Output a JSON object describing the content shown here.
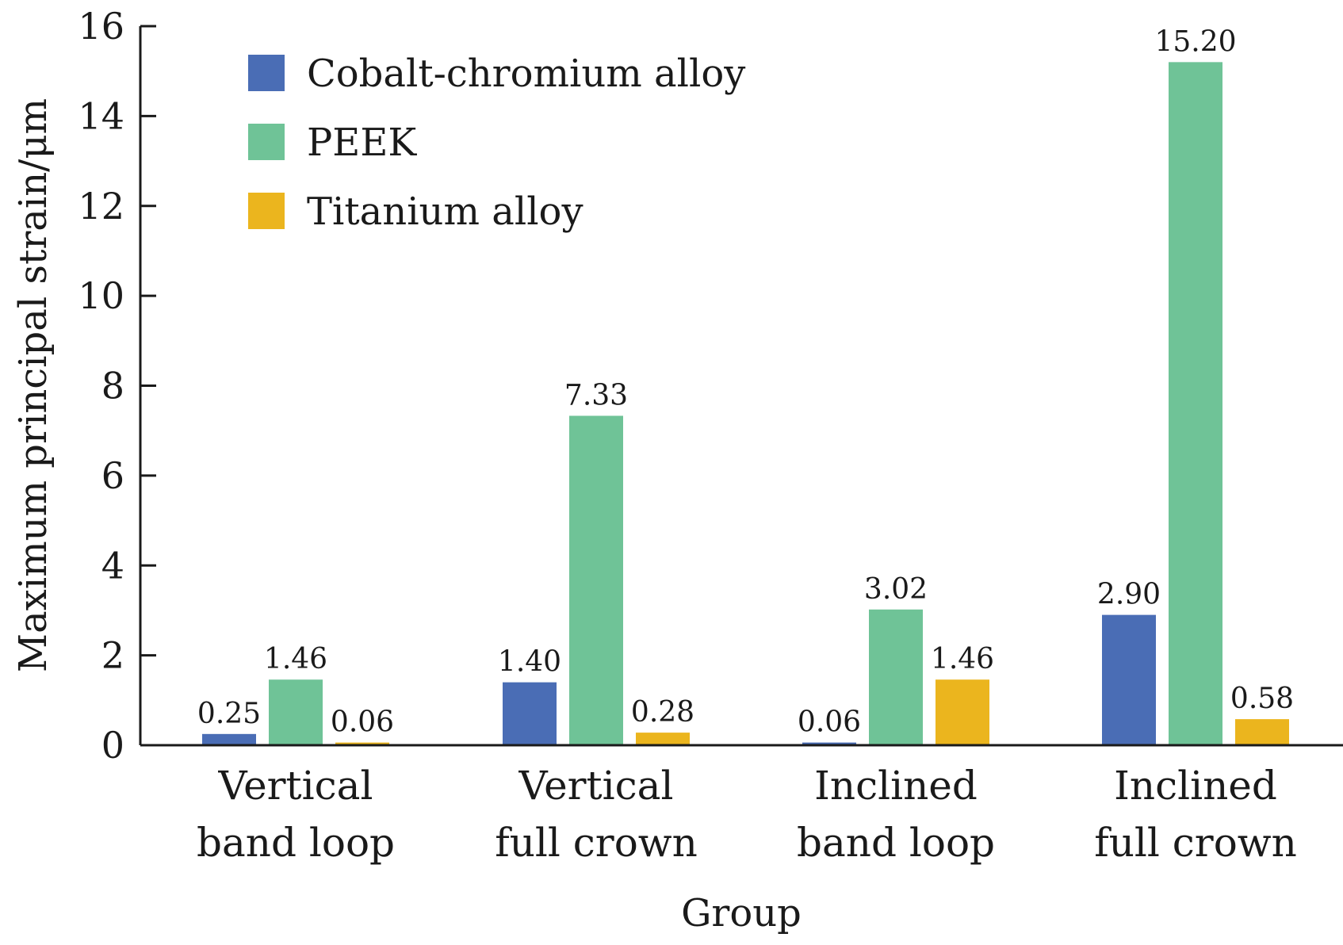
{
  "chart_data": {
    "type": "bar",
    "title": "",
    "xlabel": "Group",
    "ylabel": "Maximum principal strain/μm",
    "ylim": [
      0,
      16
    ],
    "yticks": [
      0,
      2,
      4,
      6,
      8,
      10,
      12,
      14,
      16
    ],
    "grid": false,
    "legend_position": "top-left",
    "categories": [
      [
        "Vertical",
        "band loop"
      ],
      [
        "Vertical",
        "full crown"
      ],
      [
        "Inclined",
        "band loop"
      ],
      [
        "Inclined",
        "full crown"
      ]
    ],
    "series": [
      {
        "name": "Cobalt-chromium alloy",
        "color": "#4a6db5",
        "values": [
          0.25,
          1.4,
          0.06,
          2.9
        ],
        "labels": [
          "0.25",
          "1.40",
          "0.06",
          "2.90"
        ]
      },
      {
        "name": "PEEK",
        "color": "#6fc397",
        "values": [
          1.46,
          7.33,
          3.02,
          15.2
        ],
        "labels": [
          "1.46",
          "7.33",
          "3.02",
          "15.20"
        ]
      },
      {
        "name": "Titanium alloy",
        "color": "#ebb51e",
        "values": [
          0.06,
          0.28,
          1.46,
          0.58
        ],
        "labels": [
          "0.06",
          "0.28",
          "1.46",
          "0.58"
        ]
      }
    ]
  }
}
